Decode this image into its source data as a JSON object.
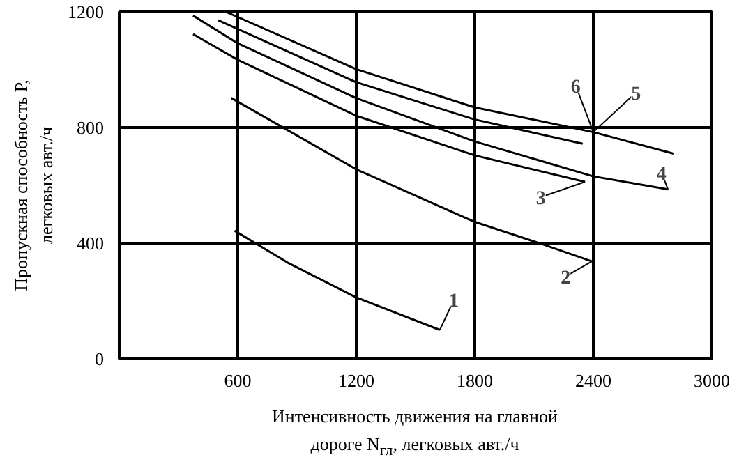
{
  "chart_data": {
    "type": "line",
    "xlabel": "Интенсивность движения на главной\nдороге N$_{гл}$, легковых авт./ч",
    "ylabel": "Пропускная способность P,\nлегковых авт./ч",
    "xlim": [
      0,
      3000
    ],
    "ylim": [
      0,
      1200
    ],
    "xticks": [
      600,
      1200,
      1800,
      2400,
      3000
    ],
    "yticks": [
      0,
      400,
      800,
      1200
    ],
    "grid": true,
    "series": [
      {
        "color": "#000000",
        "x": [
          584,
          852,
          1198,
          1623
        ],
        "values": [
          443,
          333,
          213,
          100
        ]
      },
      {
        "color": "#000000",
        "x": [
          567,
          1198,
          1798,
          2136,
          2393
        ],
        "values": [
          902,
          656,
          474,
          398,
          337
        ]
      },
      {
        "color": "#000000",
        "x": [
          374,
          600,
          1198,
          1798,
          2358
        ],
        "values": [
          1123,
          1034,
          841,
          704,
          612
        ]
      },
      {
        "color": "#000000",
        "x": [
          374,
          600,
          1198,
          1798,
          2400,
          2778
        ],
        "values": [
          1187,
          1091,
          902,
          752,
          631,
          586
        ]
      },
      {
        "color": "#000000",
        "x": [
          502,
          1198,
          1798,
          2346
        ],
        "values": [
          1171,
          957,
          828,
          744
        ]
      },
      {
        "color": "#000000",
        "x": [
          540,
          1198,
          1798,
          2400,
          2809
        ],
        "values": [
          1200,
          1002,
          870,
          784,
          709
        ]
      }
    ],
    "annotations": [
      {
        "text": "1",
        "x": 1694,
        "y": 204
      },
      {
        "text": "2",
        "x": 2260,
        "y": 285
      },
      {
        "text": "3",
        "x": 2134,
        "y": 559
      },
      {
        "text": "4",
        "x": 2745,
        "y": 644
      },
      {
        "text": "5",
        "x": 2616,
        "y": 921
      },
      {
        "text": "6",
        "x": 2311,
        "y": 945
      }
    ]
  }
}
